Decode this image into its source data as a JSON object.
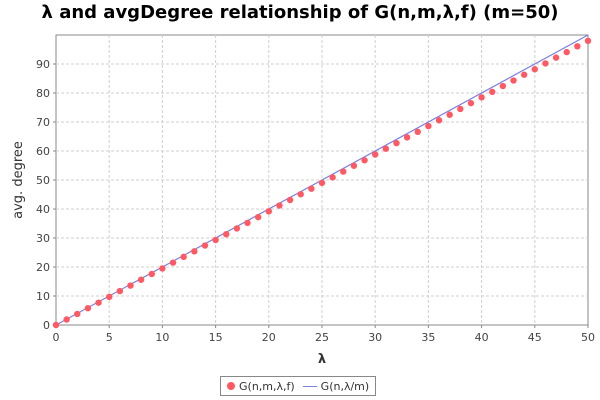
{
  "chart_data": {
    "type": "scatter",
    "title": "λ and avgDegree relationship of G(n,m,λ,f) (m=50)",
    "xlabel": "λ",
    "ylabel": "avg. degree",
    "xlim": [
      0,
      50
    ],
    "ylim": [
      0,
      100
    ],
    "xticks": [
      0,
      5,
      10,
      15,
      20,
      25,
      30,
      35,
      40,
      45,
      50
    ],
    "yticks": [
      0,
      10,
      20,
      30,
      40,
      50,
      60,
      70,
      80,
      90
    ],
    "grid": true,
    "legend_position": "bottom-center",
    "series": [
      {
        "name": "G(n,m,λ,f)",
        "kind": "scatter",
        "color": "#ff5a64",
        "x": [
          0,
          1,
          2,
          3,
          4,
          5,
          6,
          7,
          8,
          9,
          10,
          11,
          12,
          13,
          14,
          15,
          16,
          17,
          18,
          19,
          20,
          21,
          22,
          23,
          24,
          25,
          26,
          27,
          28,
          29,
          30,
          31,
          32,
          33,
          34,
          35,
          36,
          37,
          38,
          39,
          40,
          41,
          42,
          43,
          44,
          45,
          46,
          47,
          48,
          49,
          50
        ],
        "y": [
          0,
          1.9,
          3.8,
          5.8,
          7.7,
          9.7,
          11.7,
          13.6,
          15.6,
          17.6,
          19.5,
          21.5,
          23.5,
          25.4,
          27.4,
          29.3,
          31.3,
          33.3,
          35.2,
          37.2,
          39.2,
          41.2,
          43.1,
          45.1,
          47.0,
          49.0,
          50.9,
          52.9,
          54.9,
          56.8,
          58.8,
          60.8,
          62.7,
          64.7,
          66.6,
          68.6,
          70.6,
          72.5,
          74.5,
          76.5,
          78.5,
          80.4,
          82.4,
          84.3,
          86.3,
          88.2,
          90.2,
          92.2,
          94.1,
          96.1,
          98.0
        ]
      },
      {
        "name": "G(n,λ/m)",
        "kind": "line",
        "color": "#7a7fe0",
        "x": [
          0,
          50
        ],
        "y": [
          0,
          100
        ]
      }
    ]
  }
}
